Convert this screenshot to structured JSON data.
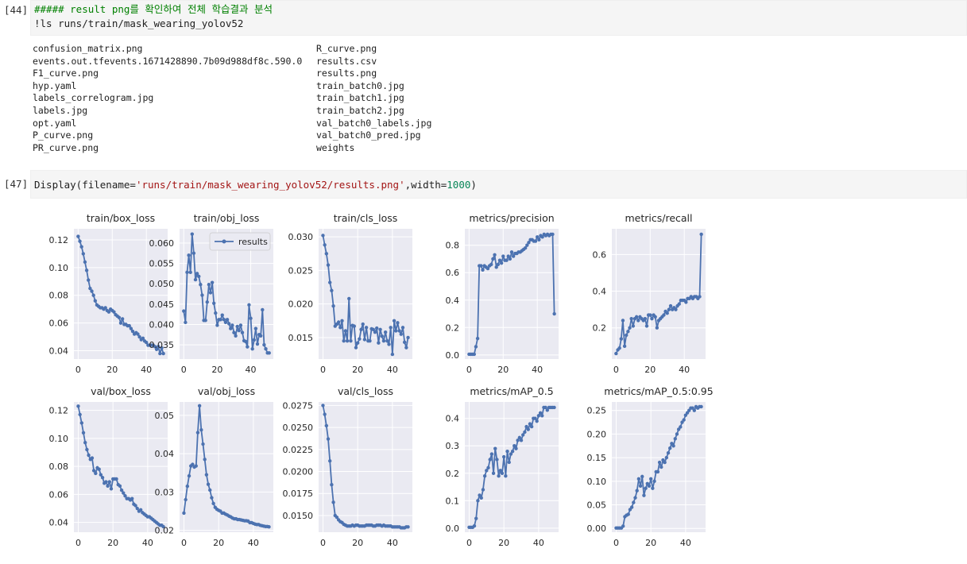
{
  "cells": [
    {
      "prompt": "[44]",
      "lines": [
        "##### result png를 확인하여 전체 학습결과 분석",
        "!ls runs/train/mask_wearing_yolov52"
      ],
      "output": {
        "left_column": [
          "confusion_matrix.png",
          "events.out.tfevents.1671428890.7b09d988df8c.590.0",
          "F1_curve.png",
          "hyp.yaml",
          "labels_correlogram.jpg",
          "labels.jpg",
          "opt.yaml",
          "P_curve.png",
          "PR_curve.png"
        ],
        "right_column": [
          "R_curve.png",
          "results.csv",
          "results.png",
          "train_batch0.jpg",
          "train_batch1.jpg",
          "train_batch2.jpg",
          "val_batch0_labels.jpg",
          "val_batch0_pred.jpg",
          "weights"
        ]
      }
    },
    {
      "prompt": "[47]",
      "code": {
        "func": "Display(filename=",
        "string": "'runs/train/mask_wearing_yolov52/results.png'",
        "mid": ",width=",
        "number": "1000",
        "end": ")"
      }
    }
  ],
  "chart_colors": {
    "line": "#4c72b0",
    "panel_bg": "#eaeaf2",
    "grid": "#ffffff",
    "tick_text": "#262626"
  },
  "chart_data": [
    {
      "type": "line",
      "title": "train/box_loss",
      "xticks": [
        0,
        20,
        40
      ],
      "yticks": [
        0.04,
        0.06,
        0.08,
        0.1,
        0.12
      ],
      "ytick_labels": [
        "0.04",
        "0.06",
        "0.08",
        "0.10",
        "0.12"
      ],
      "ylim": [
        0.034,
        0.128
      ],
      "legend": null,
      "series": [
        {
          "name": "results",
          "values": [
            0.1225,
            0.119,
            0.115,
            0.11,
            0.104,
            0.098,
            0.091,
            0.085,
            0.083,
            0.08,
            0.076,
            0.073,
            0.072,
            0.071,
            0.071,
            0.07,
            0.071,
            0.069,
            0.068,
            0.07,
            0.069,
            0.068,
            0.066,
            0.065,
            0.064,
            0.06,
            0.063,
            0.059,
            0.059,
            0.058,
            0.058,
            0.056,
            0.054,
            0.052,
            0.053,
            0.052,
            0.05,
            0.048,
            0.049,
            0.047,
            0.046,
            0.044,
            0.044,
            0.044,
            0.044,
            0.043,
            0.041,
            0.043,
            0.038,
            0.042,
            0.038
          ]
        }
      ]
    },
    {
      "type": "line",
      "title": "train/obj_loss",
      "xticks": [
        0,
        20,
        40
      ],
      "yticks": [
        0.035,
        0.04,
        0.045,
        0.05,
        0.055,
        0.06
      ],
      "ytick_labels": [
        "0.035",
        "0.040",
        "0.045",
        "0.050",
        "0.055",
        "0.060"
      ],
      "ylim": [
        0.0315,
        0.0635
      ],
      "legend": "results",
      "series": [
        {
          "name": "results",
          "values": [
            0.0433,
            0.0405,
            0.0528,
            0.057,
            0.0528,
            0.0622,
            0.0575,
            0.051,
            0.0525,
            0.0518,
            0.0498,
            0.0472,
            0.041,
            0.041,
            0.0455,
            0.0498,
            0.0478,
            0.0503,
            0.0452,
            0.0428,
            0.0398,
            0.0412,
            0.0412,
            0.0423,
            0.0412,
            0.0405,
            0.0412,
            0.0402,
            0.039,
            0.0398,
            0.038,
            0.0372,
            0.0395,
            0.0385,
            0.0398,
            0.038,
            0.036,
            0.0358,
            0.0345,
            0.0448,
            0.0415,
            0.034,
            0.0362,
            0.039,
            0.0352,
            0.0375,
            0.0372,
            0.0436,
            0.035,
            0.034,
            0.033,
            0.033
          ]
        }
      ]
    },
    {
      "type": "line",
      "title": "train/cls_loss",
      "xticks": [
        0,
        20,
        40
      ],
      "yticks": [
        0.015,
        0.02,
        0.025,
        0.03
      ],
      "ytick_labels": [
        "0.015",
        "0.020",
        "0.025",
        "0.030"
      ],
      "ylim": [
        0.0118,
        0.0312
      ],
      "legend": null,
      "series": [
        {
          "name": "results",
          "values": [
            0.0302,
            0.0288,
            0.0275,
            0.0258,
            0.0232,
            0.022,
            0.0197,
            0.0167,
            0.017,
            0.0173,
            0.0165,
            0.0175,
            0.0145,
            0.016,
            0.0145,
            0.0208,
            0.0145,
            0.0168,
            0.0167,
            0.0135,
            0.0142,
            0.0148,
            0.0162,
            0.017,
            0.0147,
            0.0165,
            0.0145,
            0.0145,
            0.0163,
            0.0162,
            0.0158,
            0.0164,
            0.0142,
            0.0162,
            0.0152,
            0.0145,
            0.0158,
            0.0145,
            0.014,
            0.0165,
            0.0125,
            0.0175,
            0.016,
            0.0172,
            0.016,
            0.0155,
            0.0165,
            0.0143,
            0.0135,
            0.015
          ]
        }
      ]
    },
    {
      "type": "line",
      "title": "metrics/precision",
      "xticks": [
        0,
        20,
        40
      ],
      "yticks": [
        0.0,
        0.2,
        0.4,
        0.6,
        0.8
      ],
      "ytick_labels": [
        "0.0",
        "0.2",
        "0.4",
        "0.6",
        "0.8"
      ],
      "ylim": [
        -0.03,
        0.92
      ],
      "legend": null,
      "series": [
        {
          "name": "results",
          "values": [
            0.005,
            0.005,
            0.005,
            0.005,
            0.06,
            0.12,
            0.65,
            0.65,
            0.62,
            0.65,
            0.64,
            0.63,
            0.65,
            0.66,
            0.7,
            0.73,
            0.64,
            0.66,
            0.69,
            0.67,
            0.72,
            0.69,
            0.69,
            0.72,
            0.7,
            0.75,
            0.72,
            0.74,
            0.74,
            0.75,
            0.75,
            0.76,
            0.77,
            0.78,
            0.8,
            0.82,
            0.84,
            0.84,
            0.83,
            0.83,
            0.86,
            0.84,
            0.87,
            0.86,
            0.88,
            0.87,
            0.88,
            0.87,
            0.88,
            0.88,
            0.3
          ]
        }
      ]
    },
    {
      "type": "line",
      "title": "metrics/recall",
      "xticks": [
        0,
        20,
        40
      ],
      "yticks": [
        0.2,
        0.4,
        0.6
      ],
      "ytick_labels": [
        "0.2",
        "0.4",
        "0.6"
      ],
      "ylim": [
        0.03,
        0.74
      ],
      "legend": null,
      "series": [
        {
          "name": "results",
          "values": [
            0.06,
            0.08,
            0.09,
            0.14,
            0.24,
            0.1,
            0.16,
            0.18,
            0.2,
            0.25,
            0.21,
            0.25,
            0.26,
            0.24,
            0.26,
            0.25,
            0.24,
            0.25,
            0.21,
            0.27,
            0.27,
            0.25,
            0.27,
            0.26,
            0.2,
            0.24,
            0.25,
            0.26,
            0.27,
            0.29,
            0.28,
            0.3,
            0.32,
            0.3,
            0.31,
            0.3,
            0.32,
            0.33,
            0.35,
            0.35,
            0.35,
            0.34,
            0.36,
            0.36,
            0.37,
            0.36,
            0.37,
            0.37,
            0.36,
            0.37,
            0.71
          ]
        }
      ]
    },
    {
      "type": "line",
      "title": "val/box_loss",
      "xticks": [
        0,
        20,
        40
      ],
      "yticks": [
        0.04,
        0.06,
        0.08,
        0.1,
        0.12
      ],
      "ytick_labels": [
        "0.04",
        "0.06",
        "0.08",
        "0.10",
        "0.12"
      ],
      "ylim": [
        0.033,
        0.126
      ],
      "legend": null,
      "series": [
        {
          "name": "results",
          "values": [
            0.123,
            0.117,
            0.111,
            0.104,
            0.097,
            0.092,
            0.088,
            0.085,
            0.086,
            0.077,
            0.075,
            0.079,
            0.078,
            0.074,
            0.072,
            0.068,
            0.069,
            0.066,
            0.069,
            0.064,
            0.071,
            0.071,
            0.071,
            0.067,
            0.066,
            0.063,
            0.061,
            0.059,
            0.057,
            0.057,
            0.056,
            0.057,
            0.053,
            0.052,
            0.05,
            0.048,
            0.049,
            0.047,
            0.046,
            0.045,
            0.044,
            0.044,
            0.043,
            0.042,
            0.041,
            0.04,
            0.039,
            0.038,
            0.038,
            0.037
          ]
        }
      ]
    },
    {
      "type": "line",
      "title": "val/obj_loss",
      "xticks": [
        0,
        20,
        40
      ],
      "yticks": [
        0.02,
        0.03,
        0.04,
        0.05
      ],
      "ytick_labels": [
        "0.02",
        "0.03",
        "0.04",
        "0.05"
      ],
      "ylim": [
        0.0195,
        0.0535
      ],
      "legend": null,
      "series": [
        {
          "name": "results",
          "values": [
            0.0245,
            0.028,
            0.0315,
            0.0342,
            0.0368,
            0.0372,
            0.0365,
            0.0368,
            0.0455,
            0.0525,
            0.0462,
            0.0425,
            0.0385,
            0.0345,
            0.032,
            0.0305,
            0.0285,
            0.027,
            0.026,
            0.0255,
            0.0252,
            0.025,
            0.0245,
            0.0245,
            0.0242,
            0.024,
            0.0237,
            0.0235,
            0.0232,
            0.023,
            0.023,
            0.0228,
            0.0228,
            0.0227,
            0.0226,
            0.0225,
            0.0225,
            0.0224,
            0.022,
            0.022,
            0.0218,
            0.0216,
            0.0215,
            0.0215,
            0.0213,
            0.0212,
            0.0211,
            0.021,
            0.021,
            0.0209
          ]
        }
      ]
    },
    {
      "type": "line",
      "title": "val/cls_loss",
      "xticks": [
        0,
        20,
        40
      ],
      "yticks": [
        0.015,
        0.0175,
        0.02,
        0.0225,
        0.025,
        0.0275
      ],
      "ytick_labels": [
        "0.0150",
        "0.0175",
        "0.0200",
        "0.0225",
        "0.0250",
        "0.0275"
      ],
      "ylim": [
        0.0131,
        0.0279
      ],
      "legend": null,
      "series": [
        {
          "name": "results",
          "values": [
            0.0275,
            0.0265,
            0.0252,
            0.0237,
            0.0212,
            0.0185,
            0.0165,
            0.015,
            0.0148,
            0.0145,
            0.0143,
            0.0142,
            0.014,
            0.0139,
            0.0138,
            0.0138,
            0.0138,
            0.0139,
            0.0138,
            0.0139,
            0.0139,
            0.0138,
            0.0138,
            0.0138,
            0.0138,
            0.0139,
            0.0139,
            0.0139,
            0.0139,
            0.0138,
            0.0138,
            0.0139,
            0.0139,
            0.0139,
            0.0138,
            0.0139,
            0.0138,
            0.0138,
            0.0138,
            0.0138,
            0.0137,
            0.0137,
            0.0137,
            0.0137,
            0.0137,
            0.0136,
            0.0136,
            0.0136,
            0.0137,
            0.0137
          ]
        }
      ]
    },
    {
      "type": "line",
      "title": "metrics/mAP_0.5",
      "xticks": [
        0,
        20,
        40
      ],
      "yticks": [
        0.0,
        0.1,
        0.2,
        0.3,
        0.4
      ],
      "ytick_labels": [
        "0.0",
        "0.1",
        "0.2",
        "0.3",
        "0.4"
      ],
      "ylim": [
        -0.015,
        0.46
      ],
      "legend": null,
      "series": [
        {
          "name": "results",
          "values": [
            0.003,
            0.003,
            0.003,
            0.008,
            0.035,
            0.1,
            0.12,
            0.11,
            0.14,
            0.19,
            0.21,
            0.22,
            0.25,
            0.27,
            0.2,
            0.29,
            0.25,
            0.19,
            0.21,
            0.2,
            0.26,
            0.19,
            0.28,
            0.24,
            0.27,
            0.28,
            0.3,
            0.29,
            0.32,
            0.33,
            0.32,
            0.34,
            0.35,
            0.37,
            0.36,
            0.38,
            0.37,
            0.4,
            0.4,
            0.39,
            0.41,
            0.42,
            0.41,
            0.44,
            0.44,
            0.43,
            0.44,
            0.44,
            0.44,
            0.44
          ]
        }
      ]
    },
    {
      "type": "line",
      "title": "metrics/mAP_0.5:0.95",
      "xticks": [
        0,
        20,
        40
      ],
      "yticks": [
        0.0,
        0.05,
        0.1,
        0.15,
        0.2,
        0.25
      ],
      "ytick_labels": [
        "0.00",
        "0.05",
        "0.10",
        "0.15",
        "0.20",
        "0.25"
      ],
      "ylim": [
        -0.008,
        0.268
      ],
      "legend": null,
      "series": [
        {
          "name": "results",
          "values": [
            0.001,
            0.001,
            0.001,
            0.001,
            0.005,
            0.025,
            0.028,
            0.03,
            0.04,
            0.045,
            0.055,
            0.065,
            0.08,
            0.105,
            0.09,
            0.11,
            0.07,
            0.085,
            0.095,
            0.09,
            0.105,
            0.085,
            0.1,
            0.12,
            0.12,
            0.14,
            0.13,
            0.145,
            0.14,
            0.15,
            0.16,
            0.17,
            0.18,
            0.175,
            0.19,
            0.2,
            0.21,
            0.215,
            0.225,
            0.23,
            0.24,
            0.245,
            0.25,
            0.255,
            0.255,
            0.25,
            0.258,
            0.255,
            0.258,
            0.258
          ]
        }
      ]
    }
  ]
}
